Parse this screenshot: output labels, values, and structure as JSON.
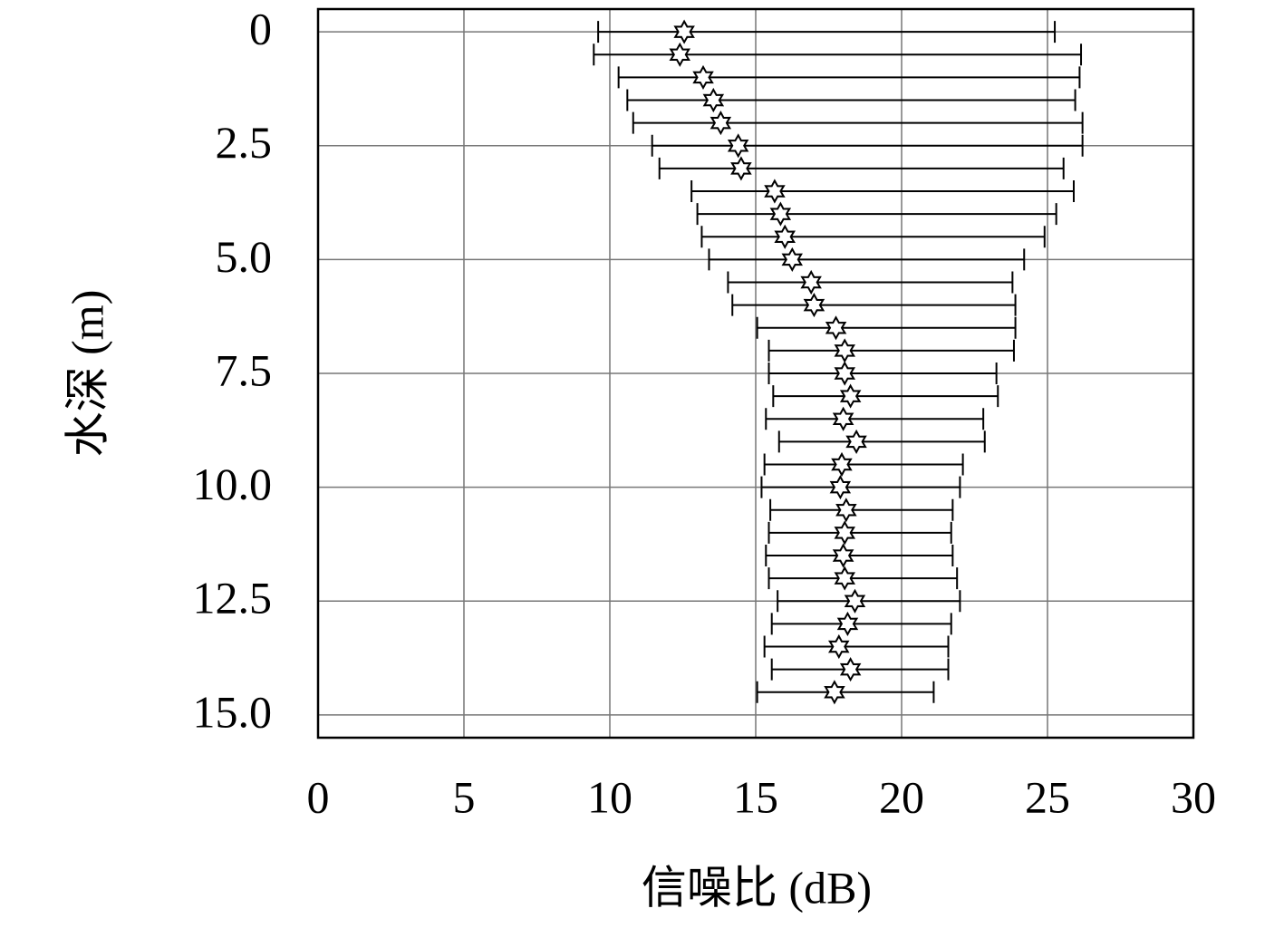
{
  "chart_data": {
    "type": "errorbar",
    "xlabel": "信噪比 (dB)",
    "ylabel": "水深 (m)",
    "y": [
      0,
      0.5,
      1,
      1.5,
      2,
      2.5,
      3,
      3.5,
      4,
      4.5,
      5,
      5.5,
      6,
      6.5,
      7,
      7.5,
      8,
      8.5,
      9,
      9.5,
      10,
      10.5,
      11,
      11.5,
      12,
      12.5,
      13,
      13.5,
      14,
      14.5
    ],
    "x": [
      12.55,
      12.4,
      13.2,
      13.55,
      13.8,
      14.4,
      14.5,
      15.65,
      15.85,
      16.0,
      16.25,
      16.9,
      17.0,
      17.75,
      18.05,
      18.05,
      18.25,
      18.0,
      18.45,
      17.95,
      17.9,
      18.1,
      18.05,
      18.0,
      18.05,
      18.4,
      18.15,
      17.85,
      18.25,
      17.7
    ],
    "x_min": [
      9.6,
      9.45,
      10.3,
      10.6,
      10.8,
      11.45,
      11.7,
      12.8,
      13.0,
      13.15,
      13.4,
      14.05,
      14.2,
      15.05,
      15.45,
      15.45,
      15.6,
      15.35,
      15.8,
      15.3,
      15.2,
      15.5,
      15.45,
      15.35,
      15.45,
      15.75,
      15.55,
      15.3,
      15.55,
      15.05
    ],
    "x_max": [
      25.25,
      26.15,
      26.1,
      25.95,
      26.2,
      26.2,
      25.55,
      25.9,
      25.3,
      24.9,
      24.2,
      23.8,
      23.9,
      23.9,
      23.85,
      23.25,
      23.3,
      22.8,
      22.85,
      22.1,
      22.0,
      21.75,
      21.7,
      21.75,
      21.9,
      22.0,
      21.7,
      21.6,
      21.6,
      21.1
    ],
    "marker_color": "#ffffff",
    "line_color": "#000000",
    "xlim": [
      0,
      30
    ],
    "xticks": [
      0,
      5,
      10,
      15,
      20,
      25,
      30
    ],
    "ylim": [
      15.5,
      -0.5
    ],
    "yticks": [
      0,
      2.5,
      {
        "value": 5,
        "label": "5.0"
      },
      7.5,
      {
        "value": 10,
        "label": "10.0"
      },
      12.5,
      {
        "value": 15,
        "label": "15.0"
      }
    ],
    "grid": true
  }
}
